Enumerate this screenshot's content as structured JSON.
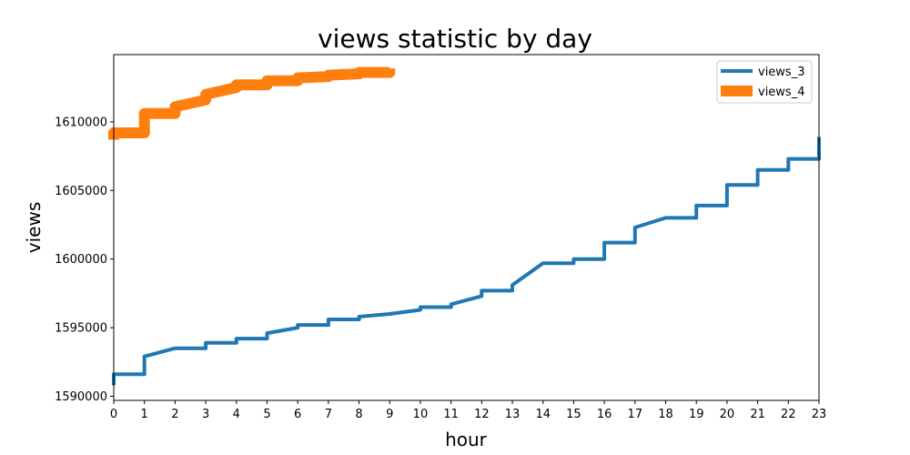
{
  "chart_data": {
    "type": "line",
    "title": "views statistic by day",
    "xlabel": "hour",
    "ylabel": "views",
    "xlim": [
      0,
      23
    ],
    "ylim": [
      1589700,
      1614900
    ],
    "x_ticks": [
      0,
      1,
      2,
      3,
      4,
      5,
      6,
      7,
      8,
      9,
      10,
      11,
      12,
      13,
      14,
      15,
      16,
      17,
      18,
      19,
      20,
      21,
      22,
      23
    ],
    "y_ticks": [
      1590000,
      1595000,
      1600000,
      1605000,
      1610000
    ],
    "grid": false,
    "legend_position": "top-right",
    "series": [
      {
        "name": "views_3",
        "color": "#1f77b4",
        "points": [
          [
            0,
            1590800
          ],
          [
            0,
            1591600
          ],
          [
            1,
            1591600
          ],
          [
            1,
            1592900
          ],
          [
            2,
            1593500
          ],
          [
            3,
            1593500
          ],
          [
            3,
            1593900
          ],
          [
            4,
            1593900
          ],
          [
            4,
            1594200
          ],
          [
            5,
            1594200
          ],
          [
            5,
            1594600
          ],
          [
            6,
            1595000
          ],
          [
            6,
            1595200
          ],
          [
            7,
            1595200
          ],
          [
            7,
            1595600
          ],
          [
            8,
            1595600
          ],
          [
            8,
            1595800
          ],
          [
            9,
            1596000
          ],
          [
            10,
            1596300
          ],
          [
            10,
            1596500
          ],
          [
            11,
            1596500
          ],
          [
            11,
            1596700
          ],
          [
            12,
            1597300
          ],
          [
            12,
            1597700
          ],
          [
            13,
            1597700
          ],
          [
            13,
            1598100
          ],
          [
            14,
            1599700
          ],
          [
            15,
            1599700
          ],
          [
            15,
            1600000
          ],
          [
            16,
            1600000
          ],
          [
            16,
            1601200
          ],
          [
            17,
            1601200
          ],
          [
            17,
            1602300
          ],
          [
            18,
            1603000
          ],
          [
            19,
            1603000
          ],
          [
            19,
            1603900
          ],
          [
            20,
            1603900
          ],
          [
            20,
            1605400
          ],
          [
            21,
            1605400
          ],
          [
            21,
            1606500
          ],
          [
            22,
            1606500
          ],
          [
            22,
            1607300
          ],
          [
            23,
            1607300
          ],
          [
            23,
            1608900
          ]
        ]
      },
      {
        "name": "views_4",
        "color": "#ff7f0e",
        "points": [
          [
            0,
            1608700
          ],
          [
            0,
            1609200
          ],
          [
            1,
            1609200
          ],
          [
            1,
            1610600
          ],
          [
            2,
            1610600
          ],
          [
            2,
            1611100
          ],
          [
            3,
            1611600
          ],
          [
            3,
            1612000
          ],
          [
            4,
            1612500
          ],
          [
            4,
            1612700
          ],
          [
            5,
            1612700
          ],
          [
            5,
            1613000
          ],
          [
            6,
            1613000
          ],
          [
            6,
            1613200
          ],
          [
            7,
            1613300
          ],
          [
            7,
            1613400
          ],
          [
            8,
            1613500
          ],
          [
            8,
            1613600
          ],
          [
            9,
            1613600
          ],
          [
            9,
            1613900
          ]
        ]
      }
    ]
  }
}
